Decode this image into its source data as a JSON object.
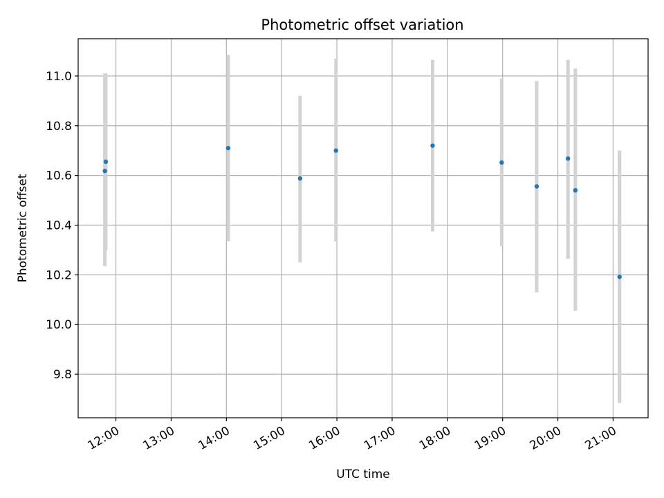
{
  "chart_data": {
    "type": "scatter",
    "title": "Photometric offset variation",
    "xlabel": "UTC time",
    "ylabel": "Photometric offset",
    "grid": true,
    "x_ticks": [
      "12:00",
      "13:00",
      "14:00",
      "15:00",
      "16:00",
      "17:00",
      "18:00",
      "19:00",
      "20:00",
      "21:00"
    ],
    "y_ticks": [
      "9.8",
      "10.0",
      "10.2",
      "10.4",
      "10.6",
      "10.8",
      "11.0"
    ],
    "xlim": [
      "11:19",
      "21:38"
    ],
    "ylim": [
      9.625,
      11.15
    ],
    "points": [
      {
        "x": "11:48",
        "y": 10.618,
        "err_low": 10.235,
        "err_high": 11.01
      },
      {
        "x": "11:49",
        "y": 10.655,
        "err_low": 10.3,
        "err_high": 11.01
      },
      {
        "x": "14:02",
        "y": 10.71,
        "err_low": 10.335,
        "err_high": 11.085
      },
      {
        "x": "15:20",
        "y": 10.588,
        "err_low": 10.25,
        "err_high": 10.92
      },
      {
        "x": "15:59",
        "y": 10.7,
        "err_low": 10.335,
        "err_high": 11.07
      },
      {
        "x": "17:44",
        "y": 10.72,
        "err_low": 10.375,
        "err_high": 11.065
      },
      {
        "x": "18:59",
        "y": 10.652,
        "err_low": 10.315,
        "err_high": 10.99
      },
      {
        "x": "19:37",
        "y": 10.556,
        "err_low": 10.13,
        "err_high": 10.98
      },
      {
        "x": "20:11",
        "y": 10.668,
        "err_low": 10.265,
        "err_high": 11.065
      },
      {
        "x": "20:19",
        "y": 10.54,
        "err_low": 10.055,
        "err_high": 11.03
      },
      {
        "x": "21:07",
        "y": 10.192,
        "err_low": 9.685,
        "err_high": 10.7
      }
    ],
    "marker_color": "#1f77b4",
    "errorbar_color": "#d3d3d3"
  }
}
